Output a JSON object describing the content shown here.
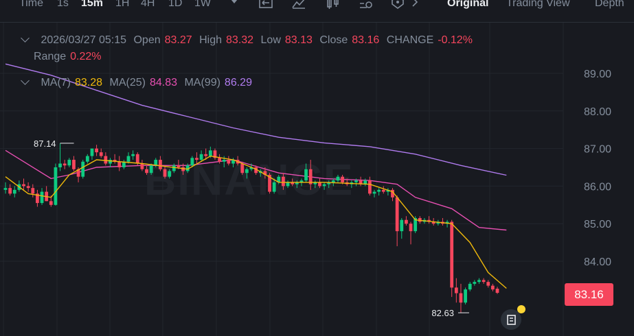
{
  "toolbar": {
    "intervals": [
      "Time",
      "1s",
      "15m",
      "1H",
      "4H",
      "1D",
      "1W"
    ],
    "active_interval": "15m",
    "views": [
      "Original",
      "Trading View",
      "Depth"
    ],
    "active_view": "Original"
  },
  "ohlc": {
    "date": "2026/03/27 05:15",
    "open_label": "Open",
    "open": "83.27",
    "high_label": "High",
    "high": "83.32",
    "low_label": "Low",
    "low": "83.13",
    "close_label": "Close",
    "close": "83.16",
    "change_label": "CHANGE",
    "change": "-0.12%",
    "range_label": "Range",
    "range": "0.22%"
  },
  "ma": {
    "ma7_label": "MA(7)",
    "ma7": "83.28",
    "ma25_label": "MA(25)",
    "ma25": "84.83",
    "ma99_label": "MA(99)",
    "ma99": "86.29"
  },
  "watermark": "BINANCE",
  "current_price": "83.16",
  "high_marker": "87.14",
  "low_marker": "82.63",
  "colors": {
    "up": "#0ecb81",
    "down": "#f6465d",
    "ma7": "#f0b90b",
    "ma25": "#e64fb1",
    "ma99": "#b17cf0"
  },
  "chart_data": {
    "type": "candlestick",
    "ylim": [
      82.5,
      89.6
    ],
    "yticks": [
      "89.00",
      "88.00",
      "87.00",
      "86.00",
      "85.00",
      "84.00"
    ],
    "candles": [
      [
        85.9,
        86.1,
        85.8,
        85.95
      ],
      [
        85.95,
        86.05,
        85.75,
        85.8
      ],
      [
        85.8,
        86.0,
        85.7,
        85.9
      ],
      [
        85.9,
        86.15,
        85.85,
        86.05
      ],
      [
        86.05,
        86.2,
        85.9,
        86.0
      ],
      [
        86.0,
        86.1,
        85.85,
        85.95
      ],
      [
        85.95,
        86.05,
        85.7,
        85.8
      ],
      [
        85.8,
        85.9,
        85.45,
        85.55
      ],
      [
        85.55,
        85.95,
        85.5,
        85.85
      ],
      [
        85.85,
        86.0,
        85.6,
        85.6
      ],
      [
        85.6,
        85.75,
        85.45,
        85.5
      ],
      [
        85.5,
        86.6,
        85.48,
        86.5
      ],
      [
        86.5,
        87.14,
        86.4,
        86.6
      ],
      [
        86.6,
        86.7,
        86.45,
        86.55
      ],
      [
        86.55,
        86.75,
        86.5,
        86.7
      ],
      [
        86.7,
        86.8,
        86.4,
        86.45
      ],
      [
        86.45,
        86.5,
        86.1,
        86.25
      ],
      [
        86.25,
        86.7,
        86.2,
        86.65
      ],
      [
        86.65,
        86.85,
        86.6,
        86.8
      ],
      [
        86.8,
        87.0,
        86.7,
        87.0
      ],
      [
        87.0,
        87.1,
        86.8,
        86.9
      ],
      [
        86.9,
        87.0,
        86.75,
        86.8
      ],
      [
        86.8,
        86.9,
        86.55,
        86.6
      ],
      [
        86.6,
        86.75,
        86.5,
        86.7
      ],
      [
        86.7,
        86.85,
        86.6,
        86.65
      ],
      [
        86.65,
        86.8,
        86.4,
        86.5
      ],
      [
        86.5,
        86.7,
        86.45,
        86.65
      ],
      [
        86.65,
        86.9,
        86.6,
        86.8
      ],
      [
        86.8,
        86.95,
        86.7,
        86.85
      ],
      [
        86.85,
        86.9,
        86.55,
        86.6
      ],
      [
        86.6,
        86.7,
        86.4,
        86.45
      ],
      [
        86.45,
        86.55,
        86.3,
        86.35
      ],
      [
        86.35,
        86.6,
        86.3,
        86.55
      ],
      [
        86.55,
        86.75,
        86.5,
        86.7
      ],
      [
        86.7,
        86.8,
        86.4,
        86.45
      ],
      [
        86.45,
        86.55,
        86.2,
        86.25
      ],
      [
        86.25,
        86.45,
        86.2,
        86.4
      ],
      [
        86.4,
        86.6,
        86.35,
        86.55
      ],
      [
        86.55,
        86.7,
        86.45,
        86.5
      ],
      [
        86.5,
        86.6,
        86.3,
        86.4
      ],
      [
        86.4,
        86.6,
        86.35,
        86.55
      ],
      [
        86.55,
        86.8,
        86.5,
        86.75
      ],
      [
        86.75,
        86.9,
        86.6,
        86.7
      ],
      [
        86.7,
        86.95,
        86.65,
        86.85
      ],
      [
        86.85,
        87.0,
        86.7,
        86.8
      ],
      [
        86.8,
        87.05,
        86.75,
        86.95
      ],
      [
        86.95,
        87.0,
        86.7,
        86.75
      ],
      [
        86.75,
        86.85,
        86.6,
        86.65
      ],
      [
        86.65,
        86.8,
        86.5,
        86.7
      ],
      [
        86.7,
        86.8,
        86.55,
        86.6
      ],
      [
        86.6,
        86.75,
        86.5,
        86.7
      ],
      [
        86.7,
        86.8,
        86.55,
        86.6
      ],
      [
        86.6,
        86.65,
        86.3,
        86.35
      ],
      [
        86.35,
        86.5,
        86.2,
        86.45
      ],
      [
        86.45,
        86.6,
        86.4,
        86.5
      ],
      [
        86.5,
        86.55,
        86.3,
        86.35
      ],
      [
        86.35,
        86.45,
        86.25,
        86.4
      ],
      [
        86.4,
        86.5,
        86.2,
        86.3
      ],
      [
        86.3,
        86.35,
        85.8,
        85.85
      ],
      [
        85.85,
        86.2,
        85.8,
        86.1
      ],
      [
        86.1,
        86.3,
        86.05,
        86.25
      ],
      [
        86.25,
        86.35,
        85.9,
        86.0
      ],
      [
        86.0,
        86.15,
        85.95,
        86.1
      ],
      [
        86.1,
        86.2,
        86.0,
        86.05
      ],
      [
        86.05,
        86.15,
        85.95,
        86.1
      ],
      [
        86.1,
        86.2,
        86.0,
        86.15
      ],
      [
        86.15,
        86.6,
        86.1,
        86.45
      ],
      [
        86.45,
        86.7,
        85.9,
        86.05
      ],
      [
        86.05,
        86.15,
        85.95,
        86.1
      ],
      [
        86.1,
        86.2,
        85.95,
        86.0
      ],
      [
        86.0,
        86.1,
        85.9,
        86.05
      ],
      [
        86.05,
        86.15,
        85.95,
        86.1
      ],
      [
        86.1,
        86.2,
        86.0,
        86.15
      ],
      [
        86.15,
        86.3,
        86.1,
        86.25
      ],
      [
        86.25,
        86.3,
        86.05,
        86.1
      ],
      [
        86.1,
        86.2,
        86.0,
        86.05
      ],
      [
        86.05,
        86.15,
        85.95,
        86.1
      ],
      [
        86.1,
        86.2,
        86.0,
        86.15
      ],
      [
        86.15,
        86.25,
        86.0,
        86.05
      ],
      [
        86.05,
        86.2,
        86.0,
        86.15
      ],
      [
        86.15,
        86.25,
        85.75,
        85.8
      ],
      [
        85.8,
        85.9,
        85.7,
        85.85
      ],
      [
        85.85,
        85.95,
        85.75,
        85.9
      ],
      [
        85.9,
        86.0,
        85.8,
        85.85
      ],
      [
        85.85,
        85.95,
        85.75,
        85.9
      ],
      [
        85.9,
        85.95,
        85.6,
        85.7
      ],
      [
        85.7,
        85.75,
        84.4,
        84.8
      ],
      [
        84.8,
        85.15,
        84.6,
        85.1
      ],
      [
        85.1,
        85.2,
        84.95,
        85.0
      ],
      [
        85.0,
        85.05,
        84.45,
        84.8
      ],
      [
        84.8,
        85.2,
        84.75,
        85.15
      ],
      [
        85.15,
        85.2,
        85.0,
        85.05
      ],
      [
        85.05,
        85.15,
        85.0,
        85.1
      ],
      [
        85.1,
        85.2,
        85.0,
        85.05
      ],
      [
        85.05,
        85.15,
        84.95,
        85.0
      ],
      [
        85.0,
        85.1,
        84.95,
        85.05
      ],
      [
        85.05,
        85.15,
        84.95,
        85.0
      ],
      [
        85.0,
        85.1,
        84.9,
        85.05
      ],
      [
        85.05,
        85.1,
        83.05,
        83.3
      ],
      [
        83.3,
        83.55,
        82.9,
        83.15
      ],
      [
        83.15,
        83.4,
        82.63,
        82.9
      ],
      [
        82.9,
        83.3,
        82.85,
        83.25
      ],
      [
        83.25,
        83.45,
        83.2,
        83.4
      ],
      [
        83.4,
        83.5,
        83.35,
        83.45
      ],
      [
        83.45,
        83.55,
        83.4,
        83.5
      ],
      [
        83.5,
        83.55,
        83.4,
        83.45
      ],
      [
        83.45,
        83.5,
        83.3,
        83.35
      ],
      [
        83.35,
        83.4,
        83.2,
        83.25
      ],
      [
        83.27,
        83.32,
        83.13,
        83.16
      ]
    ],
    "ma7": [
      [
        0,
        86.25
      ],
      [
        5,
        85.8
      ],
      [
        10,
        85.7
      ],
      [
        14,
        86.3
      ],
      [
        20,
        86.7
      ],
      [
        30,
        86.6
      ],
      [
        40,
        86.45
      ],
      [
        45,
        86.8
      ],
      [
        50,
        86.7
      ],
      [
        55,
        86.45
      ],
      [
        60,
        86.1
      ],
      [
        70,
        86.1
      ],
      [
        80,
        86.05
      ],
      [
        85,
        85.85
      ],
      [
        90,
        85.1
      ],
      [
        98,
        85.0
      ],
      [
        102,
        84.5
      ],
      [
        106,
        83.7
      ],
      [
        110,
        83.28
      ]
    ],
    "ma25": [
      [
        0,
        86.95
      ],
      [
        10,
        86.2
      ],
      [
        14,
        86.3
      ],
      [
        20,
        86.5
      ],
      [
        30,
        86.55
      ],
      [
        40,
        86.55
      ],
      [
        50,
        86.7
      ],
      [
        60,
        86.35
      ],
      [
        70,
        86.2
      ],
      [
        80,
        86.15
      ],
      [
        86,
        86.05
      ],
      [
        90,
        85.7
      ],
      [
        98,
        85.4
      ],
      [
        104,
        84.9
      ],
      [
        110,
        84.83
      ]
    ],
    "ma99": [
      [
        0,
        89.25
      ],
      [
        10,
        88.95
      ],
      [
        20,
        88.55
      ],
      [
        30,
        88.15
      ],
      [
        40,
        87.85
      ],
      [
        50,
        87.55
      ],
      [
        60,
        87.3
      ],
      [
        70,
        87.15
      ],
      [
        80,
        87.05
      ],
      [
        90,
        86.85
      ],
      [
        100,
        86.55
      ],
      [
        110,
        86.29
      ]
    ]
  }
}
